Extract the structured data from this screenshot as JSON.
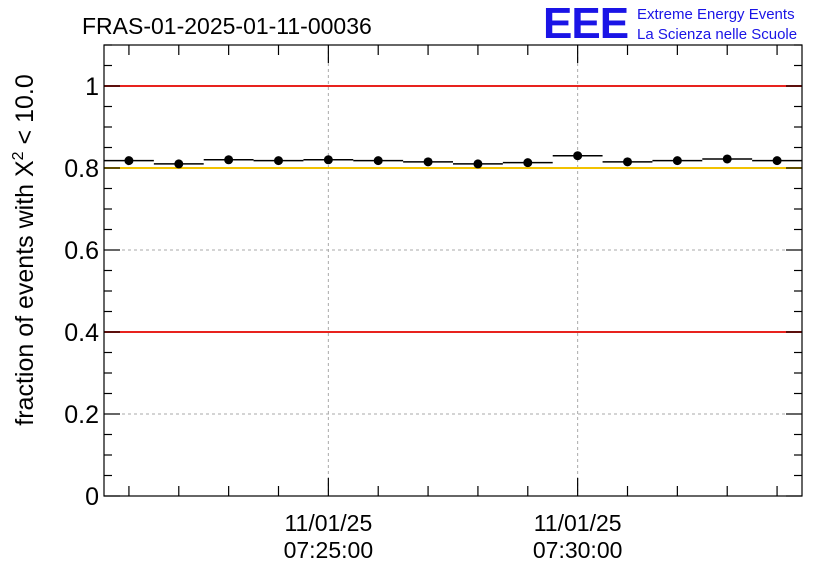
{
  "header": {
    "run_id": "FRAS-01-2025-01-11-00036",
    "logo_text": "EEE",
    "logo_line1": "Extreme Energy Events",
    "logo_line2": "La Scienza nelle Scuole"
  },
  "chart_data": {
    "type": "scatter",
    "title": "FRAS-01-2025-01-11-00036",
    "ylabel_main": "fraction of events with ",
    "ylabel_chi": "X",
    "ylabel_exp": "2",
    "ylabel_tail": " < 10.0",
    "xlabel": "",
    "ylim": [
      0,
      1.1
    ],
    "yticks": [
      {
        "value": 0,
        "label": "0"
      },
      {
        "value": 0.2,
        "label": "0.2"
      },
      {
        "value": 0.4,
        "label": "0.4"
      },
      {
        "value": 0.6,
        "label": "0.6"
      },
      {
        "value": 0.8,
        "label": "0.8"
      },
      {
        "value": 1,
        "label": "1"
      }
    ],
    "xlim": [
      "07:20:30",
      "07:34:30"
    ],
    "xticks": [
      {
        "value": "07:25:00",
        "date_label": "11/01/25",
        "time_label": "07:25:00"
      },
      {
        "value": "07:30:00",
        "date_label": "11/01/25",
        "time_label": "07:30:00"
      }
    ],
    "grid": true,
    "series": [
      {
        "x": [
          "07:21:00",
          "07:22:00",
          "07:23:00",
          "07:24:00",
          "07:25:00",
          "07:26:00",
          "07:27:00",
          "07:28:00",
          "07:29:00",
          "07:30:00",
          "07:31:00",
          "07:32:00",
          "07:33:00",
          "07:34:00"
        ],
        "y": [
          0.818,
          0.81,
          0.82,
          0.818,
          0.82,
          0.818,
          0.815,
          0.81,
          0.813,
          0.83,
          0.815,
          0.818,
          0.822,
          0.818
        ],
        "x_halfwidth_minutes": 0.5,
        "color": "#000000"
      }
    ],
    "reference_lines": [
      {
        "y": 1.0,
        "color": "#e8231e"
      },
      {
        "y": 0.8,
        "color": "#f2c200"
      },
      {
        "y": 0.4,
        "color": "#e8231e"
      }
    ],
    "colors": {
      "logo": "#1a14e6",
      "axis": "#000000",
      "grid": "#aaaaaa"
    }
  }
}
